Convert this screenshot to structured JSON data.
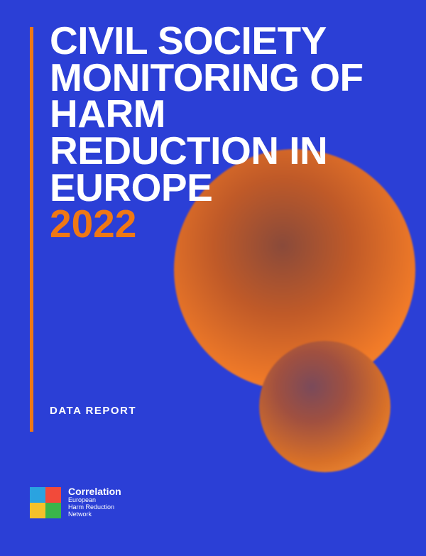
{
  "background_color": "#2b3fd6",
  "accent_color": "#ef7815",
  "text_white": "#ffffff",
  "title": {
    "lines": [
      "CIVIL SOCIETY",
      "MONITORING OF",
      "HARM",
      "REDUCTION IN",
      "EUROPE"
    ],
    "year": "2022",
    "fontsize": 55,
    "color_main": "#ffffff",
    "color_year": "#ef7815"
  },
  "subtitle": {
    "text": "DATA REPORT",
    "fontsize": 15,
    "color": "#ffffff"
  },
  "vertical_line": {
    "color": "#ef7815"
  },
  "circles": {
    "large": {
      "gradient_inner": "#8a4a3a",
      "gradient_outer": "#ff9a3a"
    },
    "small": {
      "gradient_inner": "#7a4a5a",
      "gradient_outer": "#ff9a3a"
    }
  },
  "logo": {
    "name": "Correlation",
    "tagline_lines": [
      "European",
      "Harm Reduction",
      "Network"
    ],
    "name_fontsize": 14,
    "tag_fontsize": 9,
    "text_color": "#ffffff",
    "squares": {
      "tl": "#2aa3e0",
      "tr": "#f24a3a",
      "bl": "#f5c12a",
      "br": "#3ab54a"
    }
  }
}
